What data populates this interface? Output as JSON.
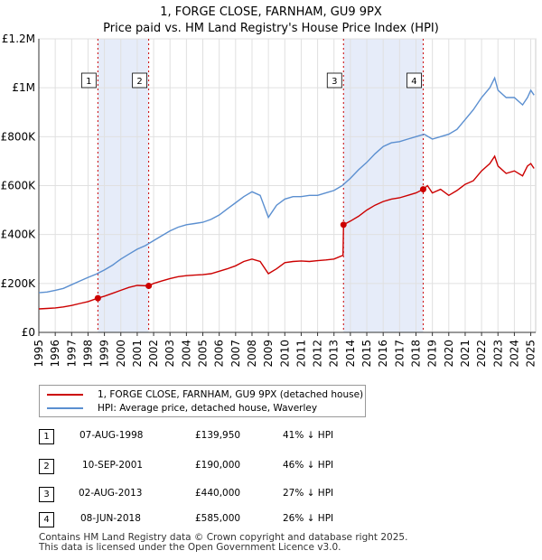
{
  "chart_data": {
    "type": "line",
    "title": "1, FORGE CLOSE, FARNHAM, GU9 9PX",
    "subtitle": "Price paid vs. HM Land Registry's House Price Index (HPI)",
    "xlim": [
      1995,
      2025.3
    ],
    "ylim": [
      0,
      1200000
    ],
    "y_ticks": [
      0,
      200000,
      400000,
      600000,
      800000,
      1000000,
      1200000
    ],
    "y_tick_labels": [
      "£0",
      "£200K",
      "£400K",
      "£600K",
      "£800K",
      "£1M",
      "£1.2M"
    ],
    "x_ticks": [
      1995,
      1996,
      1997,
      1998,
      1999,
      2000,
      2001,
      2002,
      2003,
      2004,
      2005,
      2006,
      2007,
      2008,
      2009,
      2010,
      2011,
      2012,
      2013,
      2014,
      2015,
      2016,
      2017,
      2018,
      2019,
      2020,
      2021,
      2022,
      2023,
      2024,
      2025
    ],
    "grid": true,
    "shaded_ranges": [
      [
        1998.6,
        2001.7
      ],
      [
        2013.58,
        2018.44
      ]
    ],
    "series": [
      {
        "name": "1, FORGE CLOSE, FARNHAM, GU9 9PX (detached house)",
        "color": "#cc0000",
        "x": [
          1995,
          1995.5,
          1996,
          1996.5,
          1997,
          1997.5,
          1998,
          1998.6,
          1999,
          1999.5,
          2000,
          2000.5,
          2001,
          2001.7,
          2002,
          2002.5,
          2003,
          2003.5,
          2004,
          2004.5,
          2005,
          2005.5,
          2006,
          2006.5,
          2007,
          2007.5,
          2008,
          2008.5,
          2009,
          2009.5,
          2010,
          2010.5,
          2011,
          2011.5,
          2012,
          2012.5,
          2013,
          2013.55,
          2013.58,
          2014,
          2014.5,
          2015,
          2015.5,
          2016,
          2016.5,
          2017,
          2017.5,
          2018,
          2018.44,
          2018.7,
          2019,
          2019.5,
          2020,
          2020.5,
          2021,
          2021.5,
          2022,
          2022.5,
          2022.8,
          2023,
          2023.5,
          2024,
          2024.5,
          2024.8,
          2025,
          2025.2
        ],
        "values": [
          96000,
          98000,
          100000,
          104000,
          110000,
          118000,
          126000,
          139950,
          148000,
          160000,
          172000,
          184000,
          192000,
          190000,
          200000,
          210000,
          220000,
          228000,
          232000,
          234000,
          236000,
          240000,
          250000,
          260000,
          272000,
          290000,
          300000,
          290000,
          240000,
          260000,
          285000,
          290000,
          292000,
          290000,
          293000,
          296000,
          300000,
          315000,
          440000,
          455000,
          475000,
          500000,
          520000,
          535000,
          545000,
          550000,
          560000,
          570000,
          585000,
          600000,
          570000,
          585000,
          560000,
          580000,
          605000,
          620000,
          660000,
          690000,
          720000,
          680000,
          650000,
          660000,
          640000,
          680000,
          690000,
          670000
        ]
      },
      {
        "name": "HPI: Average price, detached house, Waverley",
        "color": "#5b8fd0",
        "x": [
          1995,
          1995.5,
          1996,
          1996.5,
          1997,
          1997.5,
          1998,
          1998.5,
          1999,
          1999.5,
          2000,
          2000.5,
          2001,
          2001.5,
          2002,
          2002.5,
          2003,
          2003.5,
          2004,
          2004.5,
          2005,
          2005.5,
          2006,
          2006.5,
          2007,
          2007.5,
          2008,
          2008.5,
          2009,
          2009.5,
          2010,
          2010.5,
          2011,
          2011.5,
          2012,
          2012.5,
          2013,
          2013.5,
          2014,
          2014.5,
          2015,
          2015.5,
          2016,
          2016.5,
          2017,
          2017.5,
          2018,
          2018.5,
          2019,
          2019.5,
          2020,
          2020.5,
          2021,
          2021.5,
          2022,
          2022.5,
          2022.8,
          2023,
          2023.5,
          2024,
          2024.5,
          2024.8,
          2025,
          2025.2
        ],
        "values": [
          162000,
          165000,
          172000,
          180000,
          195000,
          210000,
          225000,
          238000,
          255000,
          275000,
          300000,
          320000,
          340000,
          355000,
          375000,
          395000,
          415000,
          430000,
          440000,
          445000,
          450000,
          462000,
          480000,
          505000,
          530000,
          555000,
          575000,
          560000,
          470000,
          520000,
          545000,
          555000,
          555000,
          560000,
          560000,
          570000,
          580000,
          600000,
          630000,
          665000,
          695000,
          730000,
          760000,
          775000,
          780000,
          790000,
          800000,
          810000,
          790000,
          800000,
          810000,
          830000,
          870000,
          910000,
          960000,
          1000000,
          1040000,
          990000,
          960000,
          960000,
          930000,
          960000,
          990000,
          970000
        ]
      }
    ],
    "markers": [
      {
        "label": "1",
        "x": 1998.6,
        "y": 139950
      },
      {
        "label": "2",
        "x": 2001.7,
        "y": 190000
      },
      {
        "label": "3",
        "x": 2013.58,
        "y": 440000
      },
      {
        "label": "4",
        "x": 2018.44,
        "y": 585000
      }
    ],
    "sales_table": [
      {
        "num": "1",
        "date": "07-AUG-1998",
        "price": "£139,950",
        "hpi": "41% ↓ HPI"
      },
      {
        "num": "2",
        "date": "10-SEP-2001",
        "price": "£190,000",
        "hpi": "46% ↓ HPI"
      },
      {
        "num": "3",
        "date": "02-AUG-2013",
        "price": "£440,000",
        "hpi": "27% ↓ HPI"
      },
      {
        "num": "4",
        "date": "08-JUN-2018",
        "price": "£585,000",
        "hpi": "26% ↓ HPI"
      }
    ],
    "footer": [
      "Contains HM Land Registry data © Crown copyright and database right 2025.",
      "This data is licensed under the Open Government Licence v3.0."
    ]
  }
}
